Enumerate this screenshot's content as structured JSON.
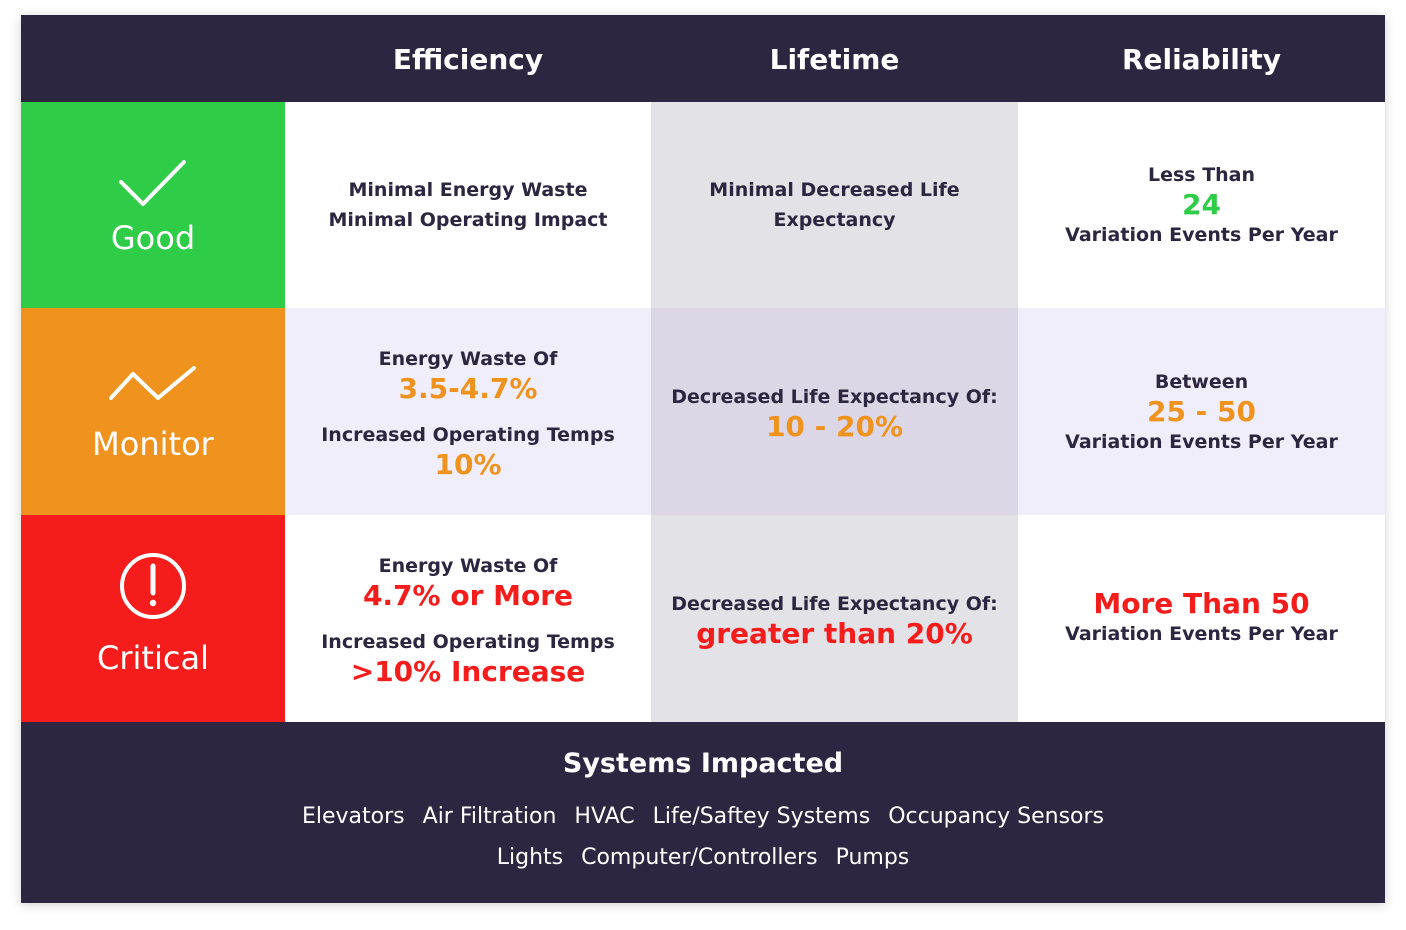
{
  "header": {
    "columns": [
      "Efficiency",
      "Lifetime",
      "Reliability"
    ]
  },
  "rows": {
    "good": {
      "label": "Good",
      "color": "#2ecc47",
      "icon": "checkmark-icon",
      "efficiency": {
        "line1": "Minimal Energy Waste",
        "line2": "Minimal Operating Impact"
      },
      "lifetime": {
        "line1": "Minimal Decreased Life",
        "line2": "Expectancy"
      },
      "reliability": {
        "pre": "Less Than",
        "value": "24",
        "post": "Variation Events Per Year"
      }
    },
    "monitor": {
      "label": "Monitor",
      "color": "#f0921e",
      "icon": "zigzag-trend-icon",
      "efficiency": {
        "label1": "Energy Waste Of",
        "value1": "3.5-4.7%",
        "label2": "Increased Operating Temps",
        "value2": "10%"
      },
      "lifetime": {
        "label": "Decreased Life Expectancy Of:",
        "value": "10 - 20%"
      },
      "reliability": {
        "pre": "Between",
        "value": "25 - 50",
        "post": "Variation Events Per Year"
      }
    },
    "critical": {
      "label": "Critical",
      "color": "#f51c1c",
      "icon": "exclamation-circle-icon",
      "efficiency": {
        "label1": "Energy Waste Of",
        "value1": "4.7% or More",
        "label2": "Increased Operating Temps",
        "value2": ">10% Increase"
      },
      "lifetime": {
        "label": "Decreased Life Expectancy Of:",
        "value": "greater than 20%"
      },
      "reliability": {
        "value": "More Than 50",
        "post": "Variation Events Per Year"
      }
    }
  },
  "footer": {
    "title": "Systems Impacted",
    "line1": [
      "Elevators",
      "Air Filtration",
      "HVAC",
      "Life/Saftey Systems",
      "Occupancy Sensors"
    ],
    "line2": [
      "Lights",
      "Computer/Controllers",
      "Pumps"
    ]
  },
  "colors": {
    "header_bg": "#2d2640",
    "text_dark": "#2d2640",
    "row_alt_bg": "#f1eefb",
    "lifetime_col_bg": "#e3e2e7",
    "lifetime_col_alt_bg": "#dbd7e6"
  }
}
